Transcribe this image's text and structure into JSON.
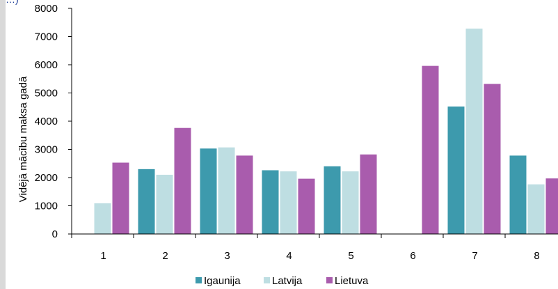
{
  "top_caption": "…)",
  "chart_data": {
    "type": "bar",
    "categories": [
      "1",
      "2",
      "3",
      "4",
      "5",
      "6",
      "7",
      "8"
    ],
    "series": [
      {
        "name": "Igaunija",
        "color": "#3d9aad",
        "values": [
          null,
          2300,
          3030,
          2260,
          2400,
          null,
          4520,
          2780
        ]
      },
      {
        "name": "Latvija",
        "color": "#bedee2",
        "values": [
          1090,
          2100,
          3070,
          2220,
          2220,
          null,
          7280,
          1760
        ]
      },
      {
        "name": "Lietuva",
        "color": "#a95cad",
        "values": [
          2530,
          3760,
          2780,
          1960,
          2820,
          5960,
          5320,
          1970
        ]
      }
    ],
    "ylabel": "Vidējā mācību maksa gadā",
    "xlabel": "",
    "ylim": [
      0,
      8000
    ],
    "yticks": [
      0,
      1000,
      2000,
      3000,
      4000,
      5000,
      6000,
      7000,
      8000
    ],
    "grid": false,
    "legend_position": "bottom"
  }
}
